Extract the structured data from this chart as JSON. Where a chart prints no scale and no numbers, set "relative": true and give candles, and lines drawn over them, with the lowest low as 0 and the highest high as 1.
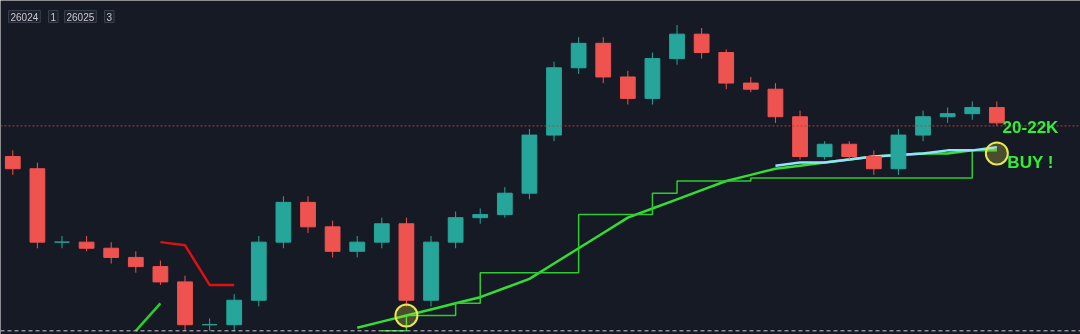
{
  "chart_data": {
    "type": "candlestick",
    "relative": true,
    "tick_labels": false,
    "grid": false,
    "categories": [
      null,
      null,
      null,
      null,
      null,
      null,
      null,
      null,
      null,
      null,
      null,
      null,
      null,
      null,
      null,
      null,
      null,
      null,
      null,
      null,
      null,
      null,
      null,
      null,
      null,
      null,
      null,
      null,
      null,
      null,
      null,
      null,
      null,
      null,
      null,
      null,
      null,
      null,
      null,
      null,
      null
    ],
    "ohlc": [
      [
        0.57,
        0.59,
        0.51,
        0.53
      ],
      [
        0.53,
        0.55,
        0.27,
        0.29
      ],
      [
        0.29,
        0.31,
        0.27,
        0.29
      ],
      [
        0.29,
        0.31,
        0.26,
        0.27
      ],
      [
        0.27,
        0.29,
        0.22,
        0.24
      ],
      [
        0.24,
        0.26,
        0.19,
        0.21
      ],
      [
        0.21,
        0.23,
        0.15,
        0.16
      ],
      [
        0.16,
        0.18,
        0,
        0.02
      ],
      [
        0.02,
        0.04,
        0.0,
        0.02
      ],
      [
        0.02,
        0.12,
        0.0,
        0.1
      ],
      [
        0.1,
        0.31,
        0.08,
        0.29
      ],
      [
        0.29,
        0.44,
        0.27,
        0.42
      ],
      [
        0.42,
        0.44,
        0.32,
        0.34
      ],
      [
        0.34,
        0.36,
        0.24,
        0.26
      ],
      [
        0.26,
        0.31,
        0.24,
        0.29
      ],
      [
        0.29,
        0.37,
        0.27,
        0.35
      ],
      [
        0.35,
        0.37,
        0.08,
        0.1
      ],
      [
        0.1,
        0.31,
        0.08,
        0.29
      ],
      [
        0.29,
        0.39,
        0.27,
        0.37
      ],
      [
        0.37,
        0.4,
        0.35,
        0.38
      ],
      [
        0.38,
        0.47,
        0.37,
        0.45
      ],
      [
        0.45,
        0.66,
        0.43,
        0.64
      ],
      [
        0.64,
        0.88,
        0.62,
        0.86
      ],
      [
        0.86,
        0.96,
        0.84,
        0.94
      ],
      [
        0.94,
        0.96,
        0.81,
        0.83
      ],
      [
        0.83,
        0.85,
        0.74,
        0.76
      ],
      [
        0.76,
        0.91,
        0.74,
        0.89
      ],
      [
        0.89,
        1,
        0.87,
        0.97
      ],
      [
        0.97,
        0.99,
        0.89,
        0.91
      ],
      [
        0.91,
        0.92,
        0.79,
        0.81
      ],
      [
        0.81,
        0.83,
        0.78,
        0.79
      ],
      [
        0.79,
        0.81,
        0.68,
        0.7
      ],
      [
        0.7,
        0.72,
        0.56,
        0.57
      ],
      [
        0.57,
        0.62,
        0.56,
        0.61
      ],
      [
        0.61,
        0.62,
        0.56,
        0.57
      ],
      [
        0.57,
        0.59,
        0.51,
        0.53
      ],
      [
        0.53,
        0.66,
        0.51,
        0.64
      ],
      [
        0.64,
        0.72,
        0.62,
        0.7
      ],
      [
        0.7,
        0.73,
        0.68,
        0.71
      ],
      [
        0.71,
        0.75,
        0.69,
        0.73
      ],
      [
        0.73,
        0.75,
        0.67,
        0.68
      ]
    ],
    "colors": [
      "#ef5350",
      "#ef5350",
      "#26a69a",
      "#ef5350",
      "#ef5350",
      "#ef5350",
      "#ef5350",
      "#ef5350",
      "#26a69a",
      "#26a69a",
      "#26a69a",
      "#26a69a",
      "#ef5350",
      "#ef5350",
      "#26a69a",
      "#26a69a",
      "#ef5350",
      "#26a69a",
      "#26a69a",
      "#26a69a",
      "#26a69a",
      "#26a69a",
      "#26a69a",
      "#26a69a",
      "#ef5350",
      "#ef5350",
      "#26a69a",
      "#26a69a",
      "#ef5350",
      "#ef5350",
      "#ef5350",
      "#ef5350",
      "#ef5350",
      "#26a69a",
      "#ef5350",
      "#ef5350",
      "#26a69a",
      "#26a69a",
      "#26a69a",
      "#26a69a",
      "#ef5350"
    ],
    "series": [
      {
        "type": "line",
        "color": "#33dd33",
        "values": [
          null,
          null,
          null,
          null,
          null,
          null,
          null,
          null,
          null,
          null,
          null,
          null,
          null,
          null,
          0.01,
          0.03,
          0.05,
          0.07,
          0.09,
          0.11,
          0.14,
          0.17,
          0.22,
          0.27,
          0.32,
          0.37,
          0.4,
          0.43,
          0.46,
          0.49,
          0.51,
          0.53,
          0.54,
          0.55,
          0.56,
          0.57,
          null,
          0.58,
          0.58,
          0.59,
          0.59
        ]
      },
      {
        "type": "step",
        "color": "#2ecc2e",
        "values": [
          null,
          null,
          null,
          null,
          null,
          null,
          null,
          null,
          null,
          null,
          null,
          null,
          null,
          null,
          null,
          0,
          0.05,
          0.05,
          0.09,
          0.19,
          0.19,
          0.19,
          0.19,
          0.38,
          0.38,
          0.38,
          0.45,
          0.49,
          0.49,
          0.49,
          0.5,
          0.5,
          0.5,
          0.5,
          0.5,
          0.5,
          0.5,
          0.5,
          0.5,
          0.59,
          0.59
        ]
      },
      {
        "type": "line",
        "color": "#2ecc2e",
        "values": [
          null,
          null,
          null,
          null,
          null,
          0,
          0.09,
          null,
          null,
          null,
          null,
          null,
          null,
          null,
          null,
          null,
          null,
          null,
          null,
          null,
          null,
          null,
          null,
          null,
          null,
          null,
          null,
          null,
          null,
          null,
          null,
          null,
          null,
          null,
          null,
          null,
          null,
          null,
          null,
          null,
          null
        ]
      },
      {
        "type": "line",
        "color": "#dd1111",
        "values": [
          null,
          null,
          null,
          null,
          null,
          null,
          0.29,
          0.28,
          0.15,
          0.15,
          null,
          null,
          null,
          null,
          null,
          null,
          null,
          null,
          null,
          null,
          null,
          null,
          null,
          null,
          null,
          null,
          null,
          null,
          null,
          null,
          null,
          null,
          null,
          null,
          null,
          null,
          null,
          null,
          null,
          null,
          null
        ]
      },
      {
        "type": "line",
        "color": "#8fe3ff",
        "values": [
          null,
          null,
          null,
          null,
          null,
          null,
          null,
          null,
          null,
          null,
          null,
          null,
          null,
          null,
          null,
          null,
          null,
          null,
          null,
          null,
          null,
          null,
          null,
          null,
          null,
          null,
          null,
          null,
          null,
          null,
          null,
          0.54,
          0.55,
          0.55,
          0.56,
          0.57,
          null,
          0.58,
          0.59,
          0.59,
          0.6
        ]
      },
      {
        "type": "scatter",
        "color": "#e8e84a",
        "marker": "circle",
        "values": [
          null,
          null,
          null,
          null,
          null,
          null,
          null,
          null,
          null,
          null,
          null,
          null,
          null,
          null,
          null,
          null,
          0.05,
          null,
          null,
          null,
          null,
          null,
          null,
          null,
          null,
          null,
          null,
          null,
          null,
          null,
          null,
          null,
          null,
          null,
          null,
          null,
          null,
          null,
          null,
          null,
          0.58
        ]
      }
    ],
    "ref_lines": [
      {
        "axis": "y",
        "value": 0.67,
        "color": "#b04040",
        "line_style": "dotted"
      },
      {
        "axis": "y",
        "value": 0,
        "color": "#cccccc",
        "line_style": "dashed"
      }
    ],
    "annotations": [
      "26024",
      "1",
      "26025",
      "3",
      "20-22K",
      "BUY !"
    ]
  }
}
